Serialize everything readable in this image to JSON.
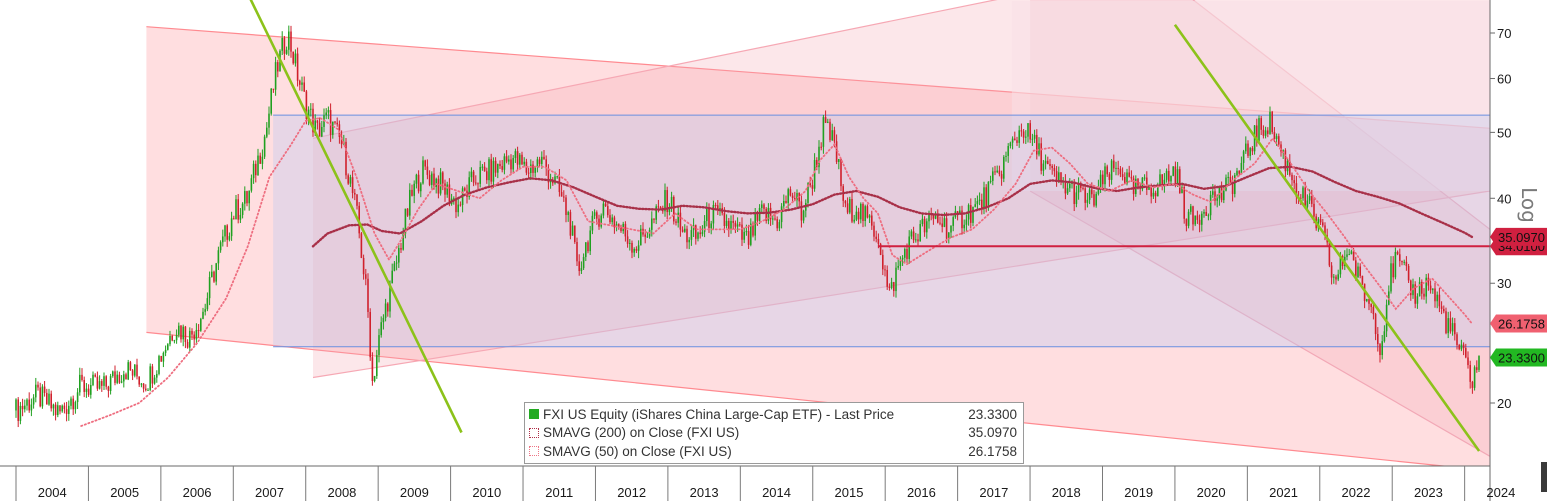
{
  "chart_data": {
    "type": "line",
    "y_scale": "log",
    "y_axis_side": "right",
    "y_axis_label": "Log",
    "ylim": [
      17.5,
      78
    ],
    "xlim": [
      2004.0,
      2024.35
    ],
    "x_tick_labels": [
      "2004",
      "2005",
      "2006",
      "2007",
      "2008",
      "2009",
      "2010",
      "2011",
      "2012",
      "2013",
      "2014",
      "2015",
      "2016",
      "2017",
      "2018",
      "2019",
      "2020",
      "2021",
      "2022",
      "2023",
      "2024"
    ],
    "y_ticks": [
      20,
      30,
      40,
      50,
      60,
      70
    ],
    "y_tick_labels": [
      "20",
      "30",
      "40",
      "50",
      "60",
      "70"
    ],
    "series": [
      {
        "name": "FXI US Equity (iShares China Large-Cap ETF) - Last Price",
        "style": "candlestick",
        "color": "#20a020",
        "down_color": "#d0202c",
        "last_value": "23.3300",
        "x": [
          2004.0,
          2004.3,
          2004.6,
          2004.9,
          2005.2,
          2005.5,
          2005.8,
          2006.0,
          2006.2,
          2006.4,
          2006.6,
          2006.8,
          2007.0,
          2007.2,
          2007.45,
          2007.6,
          2007.75,
          2007.9,
          2008.0,
          2008.15,
          2008.3,
          2008.5,
          2008.7,
          2008.85,
          2008.92,
          2009.05,
          2009.25,
          2009.45,
          2009.6,
          2009.75,
          2009.9,
          2010.1,
          2010.35,
          2010.6,
          2010.85,
          2011.05,
          2011.25,
          2011.45,
          2011.65,
          2011.75,
          2011.9,
          2012.1,
          2012.3,
          2012.55,
          2012.8,
          2013.0,
          2013.2,
          2013.4,
          2013.6,
          2013.85,
          2014.1,
          2014.3,
          2014.5,
          2014.7,
          2014.85,
          2015.0,
          2015.15,
          2015.3,
          2015.45,
          2015.6,
          2015.75,
          2015.9,
          2016.05,
          2016.15,
          2016.3,
          2016.5,
          2016.7,
          2016.9,
          2017.1,
          2017.3,
          2017.55,
          2017.75,
          2017.9,
          2018.1,
          2018.3,
          2018.5,
          2018.7,
          2018.85,
          2019.05,
          2019.25,
          2019.4,
          2019.6,
          2019.8,
          2020.0,
          2020.15,
          2020.25,
          2020.5,
          2020.7,
          2020.9,
          2021.1,
          2021.3,
          2021.5,
          2021.7,
          2021.9,
          2022.05,
          2022.2,
          2022.4,
          2022.55,
          2022.75,
          2022.85,
          2022.95,
          2023.05,
          2023.3,
          2023.5,
          2023.7,
          2023.85,
          2024.0,
          2024.1,
          2024.2
        ],
        "values": [
          19.5,
          20.5,
          19.3,
          21.2,
          21.0,
          22.5,
          21.5,
          23.5,
          26.0,
          25.0,
          27.5,
          33.0,
          38.0,
          40.0,
          50.0,
          62.0,
          70.0,
          60.0,
          55.0,
          50.0,
          52.5,
          48.0,
          38.0,
          28.0,
          21.5,
          26.0,
          32.0,
          40.0,
          44.0,
          43.0,
          41.5,
          39.0,
          43.0,
          44.0,
          46.0,
          44.0,
          45.5,
          42.0,
          37.0,
          31.0,
          35.0,
          39.0,
          36.5,
          34.0,
          37.0,
          40.0,
          35.5,
          35.0,
          38.0,
          36.5,
          34.5,
          38.0,
          37.0,
          41.0,
          38.0,
          43.0,
          51.0,
          48.0,
          38.0,
          39.0,
          37.0,
          35.5,
          28.5,
          31.0,
          34.0,
          36.0,
          37.5,
          36.0,
          38.0,
          39.0,
          43.0,
          48.0,
          51.0,
          47.0,
          43.0,
          41.5,
          40.5,
          39.5,
          43.0,
          44.5,
          41.0,
          41.5,
          42.0,
          44.0,
          38.0,
          37.0,
          40.0,
          41.0,
          44.0,
          49.5,
          52.0,
          46.0,
          41.0,
          38.0,
          35.0,
          30.0,
          34.0,
          30.0,
          27.0,
          24.0,
          30.0,
          32.5,
          29.0,
          30.0,
          27.0,
          25.0,
          23.0,
          21.6,
          23.33
        ]
      },
      {
        "name": "SMAVG (200)  on Close (FXI US)",
        "style": "dotted",
        "color": "#a83048",
        "last_value": "35.0970",
        "x": [
          2008.1,
          2008.3,
          2008.6,
          2008.85,
          2009.05,
          2009.3,
          2009.6,
          2009.9,
          2010.2,
          2010.5,
          2010.8,
          2011.1,
          2011.4,
          2011.7,
          2012.0,
          2012.3,
          2012.6,
          2012.9,
          2013.2,
          2013.5,
          2013.8,
          2014.1,
          2014.4,
          2014.7,
          2015.0,
          2015.3,
          2015.6,
          2015.9,
          2016.2,
          2016.5,
          2016.8,
          2017.1,
          2017.4,
          2017.7,
          2018.0,
          2018.3,
          2018.6,
          2018.9,
          2019.2,
          2019.5,
          2019.8,
          2020.1,
          2020.4,
          2020.7,
          2021.0,
          2021.3,
          2021.6,
          2021.9,
          2022.2,
          2022.5,
          2022.8,
          2023.1,
          2023.4,
          2023.7,
          2024.0,
          2024.1
        ],
        "values": [
          34.0,
          35.5,
          36.5,
          36.6,
          35.8,
          35.5,
          37.0,
          39.0,
          40.5,
          41.5,
          42.2,
          42.8,
          42.5,
          41.5,
          40.2,
          39.0,
          38.6,
          38.5,
          39.0,
          38.8,
          38.3,
          38.0,
          38.1,
          38.5,
          39.2,
          40.5,
          41.0,
          40.2,
          38.8,
          38.0,
          37.8,
          38.0,
          38.8,
          40.0,
          42.0,
          42.5,
          42.2,
          41.4,
          41.0,
          41.5,
          41.8,
          42.0,
          41.3,
          41.7,
          43.0,
          44.3,
          44.5,
          43.8,
          42.3,
          41.0,
          40.2,
          39.3,
          38.0,
          36.8,
          35.6,
          35.1
        ]
      },
      {
        "name": "SMAVG (50)  on Close (FXI US)",
        "style": "dotted",
        "color": "#ee6e80",
        "last_value": "26.1758",
        "x": [
          2004.9,
          2005.3,
          2005.7,
          2006.1,
          2006.5,
          2006.9,
          2007.2,
          2007.5,
          2007.8,
          2008.0,
          2008.2,
          2008.45,
          2008.7,
          2008.95,
          2009.15,
          2009.3,
          2009.55,
          2009.8,
          2010.1,
          2010.4,
          2010.7,
          2011.0,
          2011.3,
          2011.6,
          2011.9,
          2012.2,
          2012.5,
          2012.8,
          2013.1,
          2013.4,
          2013.7,
          2014.0,
          2014.3,
          2014.6,
          2014.9,
          2015.1,
          2015.3,
          2015.5,
          2015.7,
          2015.9,
          2016.1,
          2016.3,
          2016.6,
          2016.9,
          2017.2,
          2017.5,
          2017.8,
          2018.05,
          2018.3,
          2018.55,
          2018.8,
          2019.1,
          2019.4,
          2019.7,
          2020.0,
          2020.25,
          2020.5,
          2020.8,
          2021.1,
          2021.35,
          2021.6,
          2021.85,
          2022.1,
          2022.35,
          2022.6,
          2022.85,
          2023.05,
          2023.3,
          2023.55,
          2023.8,
          2024.0,
          2024.1
        ],
        "values": [
          18.5,
          19.2,
          20.0,
          21.8,
          24.5,
          28.5,
          34.0,
          43.0,
          48.0,
          52.0,
          52.5,
          50.5,
          43.0,
          35.5,
          32.5,
          34.5,
          38.5,
          42.0,
          41.0,
          40.0,
          42.5,
          44.5,
          44.5,
          42.5,
          37.0,
          36.5,
          36.0,
          35.5,
          38.0,
          36.0,
          36.0,
          36.0,
          37.0,
          38.5,
          41.0,
          45.5,
          48.0,
          43.0,
          40.0,
          38.0,
          33.0,
          32.0,
          33.5,
          35.0,
          36.0,
          38.5,
          42.0,
          47.0,
          47.5,
          45.0,
          42.0,
          41.0,
          42.5,
          41.5,
          42.0,
          40.5,
          39.5,
          42.5,
          45.0,
          49.0,
          45.0,
          41.0,
          38.0,
          35.0,
          32.0,
          29.5,
          27.5,
          29.5,
          30.5,
          28.5,
          27.0,
          26.18
        ]
      }
    ],
    "annotations": [
      {
        "kind": "horizontal_line",
        "y": 34.01,
        "label": "34.0100",
        "color": "#d02040"
      },
      {
        "kind": "price_tag",
        "y": 35.097,
        "label": "35.0970",
        "color": "#d02040"
      },
      {
        "kind": "price_tag",
        "y": 26.1758,
        "label": "26.1758",
        "color": "#f06070"
      },
      {
        "kind": "price_tag",
        "y": 23.33,
        "label": "23.3300",
        "color": "#22b822"
      },
      {
        "kind": "horizontal_band",
        "y_range": [
          24.2,
          53.0
        ],
        "x_range": [
          2007.55,
          2024.35
        ],
        "color": "#b9c9f2"
      },
      {
        "kind": "trend_channel",
        "color": "#ff8a90",
        "upper": [
          [
            2005.8,
            71.5
          ],
          [
            2024.35,
            50.7
          ]
        ],
        "lower": [
          [
            2005.8,
            25.4
          ],
          [
            2024.35,
            15.9
          ]
        ]
      },
      {
        "kind": "trend_channel",
        "color": "#f6a8b4",
        "upper": [
          [
            2008.1,
            49.0
          ],
          [
            2024.35,
            110.0
          ]
        ],
        "lower": [
          [
            2008.1,
            21.8
          ],
          [
            2024.35,
            41.0
          ]
        ]
      },
      {
        "kind": "trend_channel",
        "color": "#f2a8b6",
        "upper": [
          [
            2018.0,
            120.0
          ],
          [
            2024.35,
            36.0
          ]
        ],
        "lower": [
          [
            2018.0,
            41.0
          ],
          [
            2024.35,
            16.7
          ]
        ]
      },
      {
        "kind": "shaded_area",
        "color": "#f8e0e6",
        "region": [
          [
            2017.75,
            78.0
          ],
          [
            2024.35,
            78.0
          ],
          [
            2024.35,
            41.0
          ],
          [
            2017.75,
            41.0
          ]
        ]
      },
      {
        "kind": "trend_line",
        "color": "#8cc21a",
        "points": [
          [
            2007.2,
            80.0
          ],
          [
            2010.15,
            18.1
          ]
        ]
      },
      {
        "kind": "trend_line",
        "color": "#8cc21a",
        "points": [
          [
            2020.0,
            72.0
          ],
          [
            2024.2,
            17.0
          ]
        ]
      }
    ]
  },
  "legend": {
    "entries": [
      {
        "label": "FXI US Equity  (iShares China Large-Cap ETF)  - Last Price",
        "value": "23.3300"
      },
      {
        "label": "SMAVG (200)  on Close (FXI US)",
        "value": "35.0970"
      },
      {
        "label": "SMAVG (50)  on Close (FXI US)",
        "value": "26.1758"
      }
    ],
    "colors": [
      "#22aa22",
      "#b03048",
      "#ee7888"
    ]
  },
  "colors": {
    "up_candle": "#20a020",
    "down_candle": "#d0202c",
    "axis": "#606060"
  }
}
